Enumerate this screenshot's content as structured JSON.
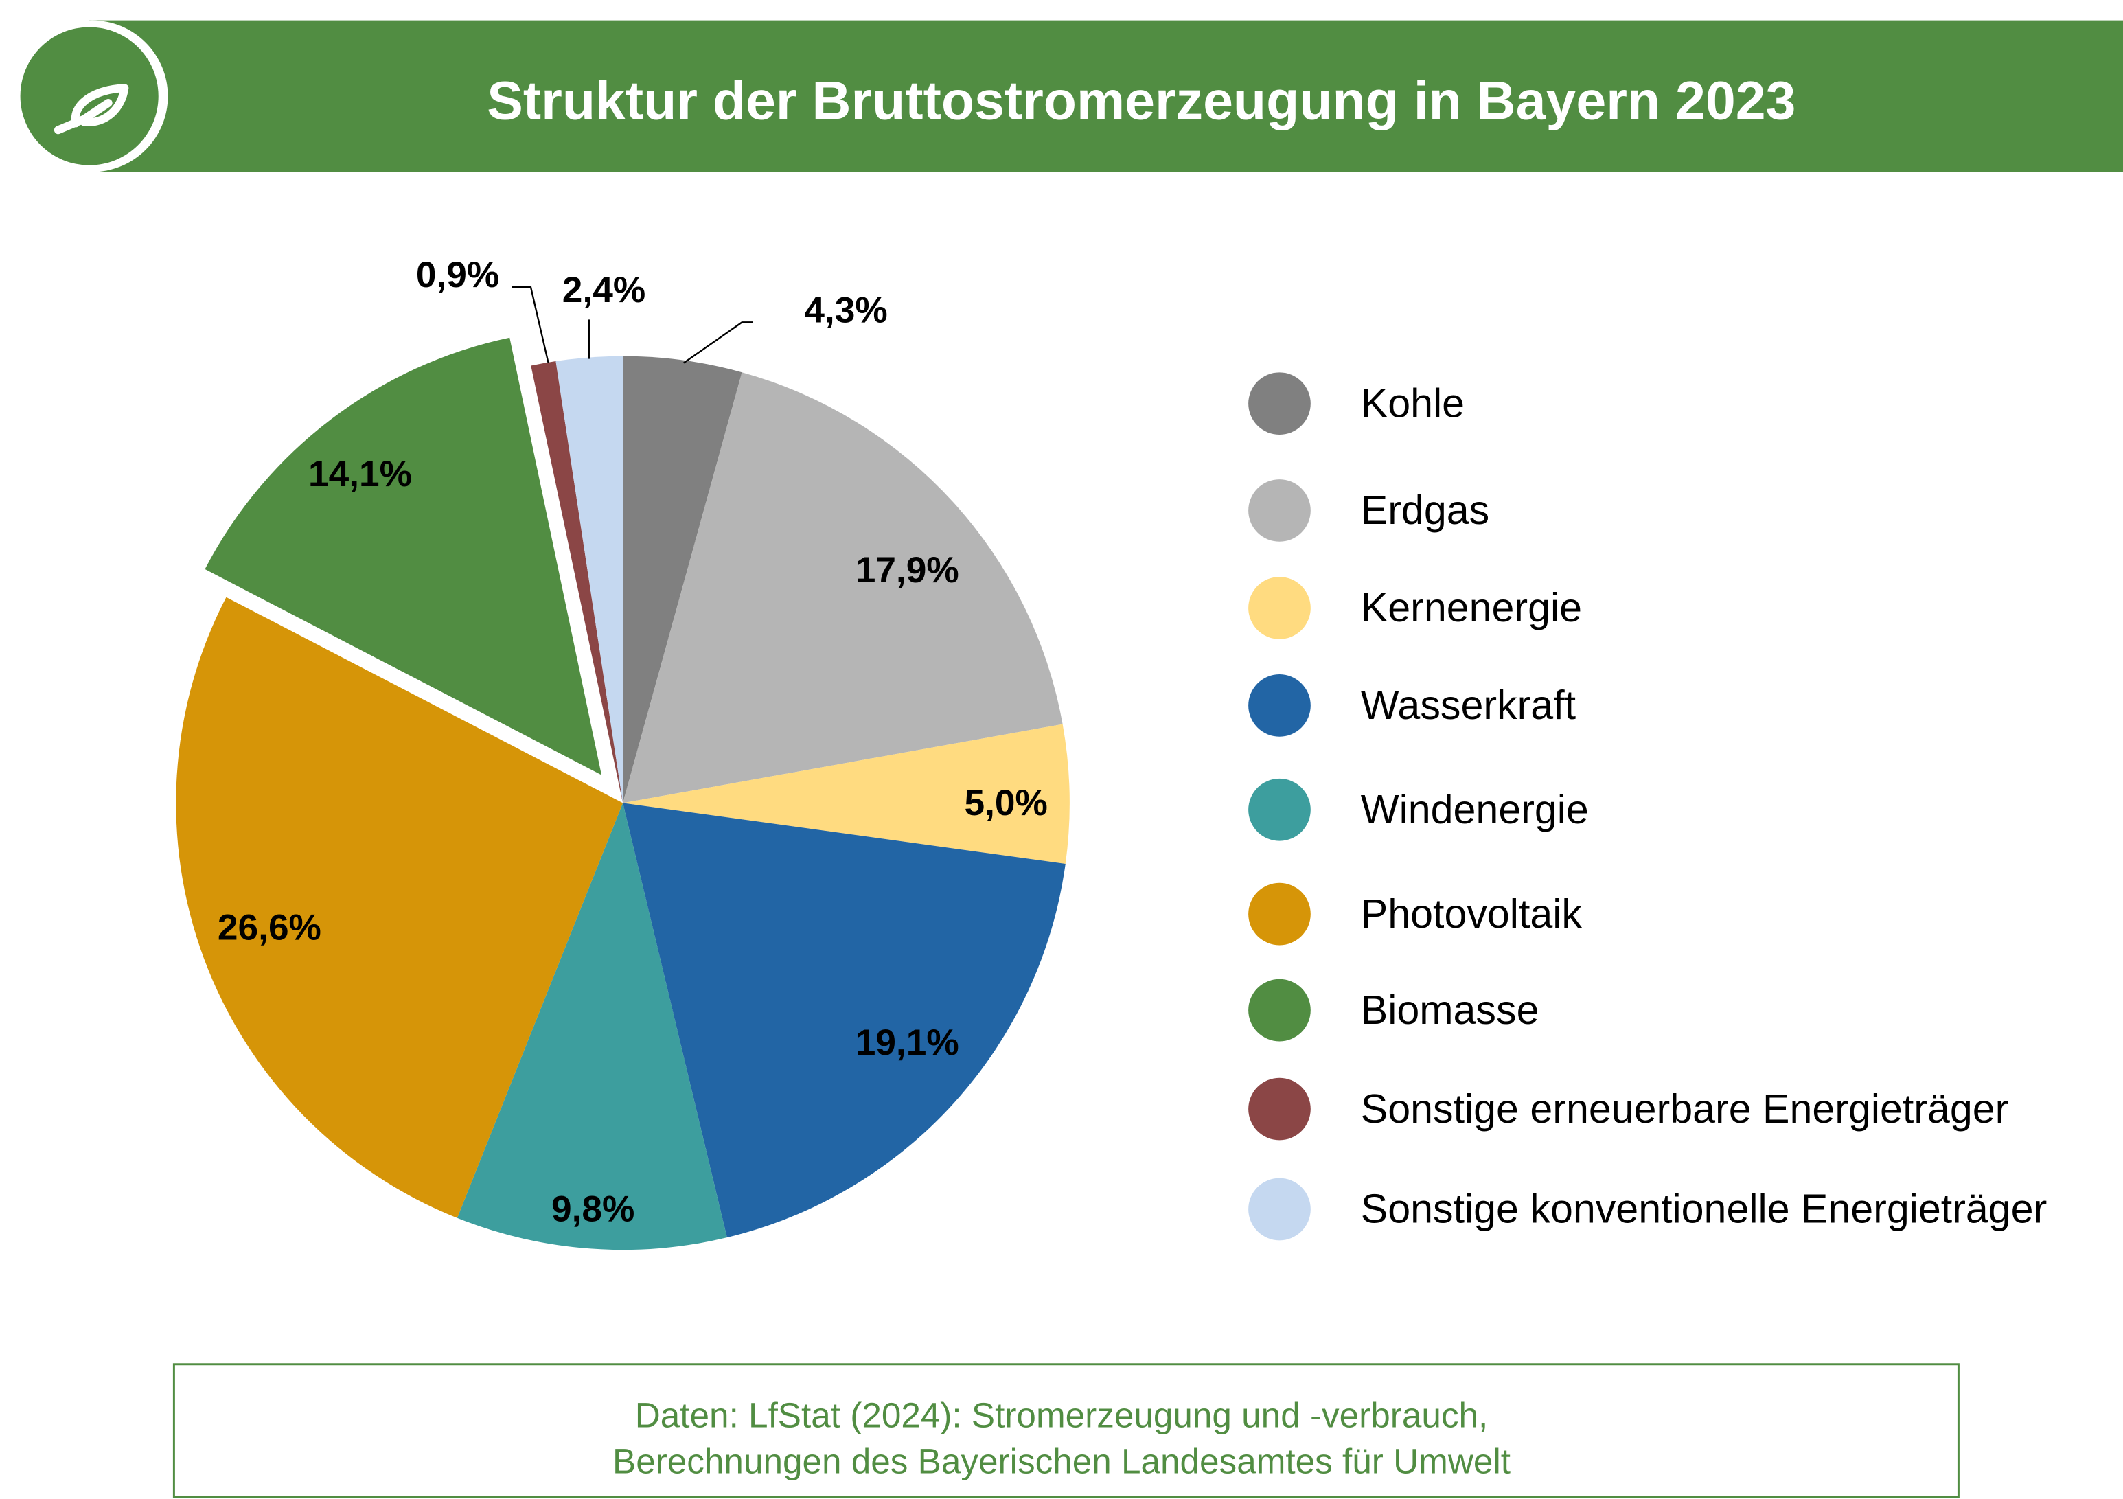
{
  "header": {
    "title": "Struktur der Bruttostromerzeugung in Bayern 2023",
    "logo_icon": "leaf-icon",
    "color": "#518d42"
  },
  "chart_data": {
    "type": "pie",
    "title": "Struktur der Bruttostromerzeugung in Bayern 2023",
    "unit": "%",
    "legend_position": "right",
    "slices": [
      {
        "name": "Kohle",
        "value": 4.3,
        "label": "4,3%",
        "color": "#808080",
        "exploded": false
      },
      {
        "name": "Erdgas",
        "value": 17.9,
        "label": "17,9%",
        "color": "#b5b5b5",
        "exploded": false
      },
      {
        "name": "Kernenergie",
        "value": 5.0,
        "label": "5,0%",
        "color": "#ffdb80",
        "exploded": false
      },
      {
        "name": "Wasserkraft",
        "value": 19.1,
        "label": "19,1%",
        "color": "#2265a5",
        "exploded": false
      },
      {
        "name": "Windenergie",
        "value": 9.8,
        "label": "9,8%",
        "color": "#3d9e9e",
        "exploded": false
      },
      {
        "name": "Photovoltaik",
        "value": 26.6,
        "label": "26,6%",
        "color": "#d69508",
        "exploded": false
      },
      {
        "name": "Biomasse",
        "value": 14.1,
        "label": "14,1%",
        "color": "#518d42",
        "exploded": true
      },
      {
        "name": "Sonstige erneuerbare Energieträger",
        "value": 0.9,
        "label": "0,9%",
        "color": "#8b4646",
        "exploded": false
      },
      {
        "name": "Sonstige konventionelle Energieträger",
        "value": 2.4,
        "label": "2,4%",
        "color": "#c5d8f0",
        "exploded": false
      }
    ]
  },
  "source": {
    "line1": "Daten: LfStat (2024): Stromerzeugung und -verbrauch,",
    "line2": "Berechnungen des Bayerischen Landesamtes für Umwelt"
  }
}
